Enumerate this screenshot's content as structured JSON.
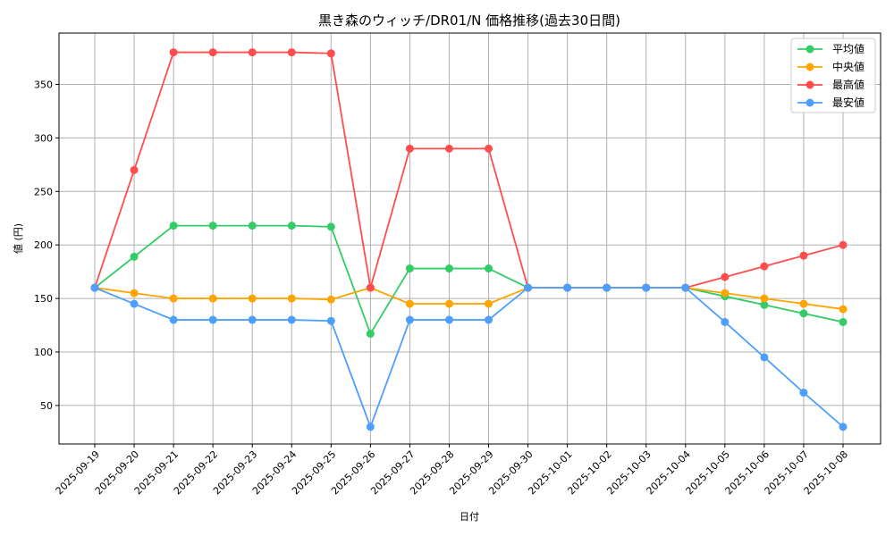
{
  "chart_data": {
    "type": "line",
    "title": "黒き森のウィッチ/DR01/N 価格推移(過去30日間)",
    "xlabel": "日付",
    "ylabel": "値 (円)",
    "ylim": [
      14,
      398
    ],
    "yticks": [
      50,
      100,
      150,
      200,
      250,
      300,
      350
    ],
    "grid": true,
    "legend_position": "upper right",
    "x": [
      "2025-09-19",
      "2025-09-20",
      "2025-09-21",
      "2025-09-22",
      "2025-09-23",
      "2025-09-24",
      "2025-09-25",
      "2025-09-26",
      "2025-09-27",
      "2025-09-28",
      "2025-09-29",
      "2025-09-30",
      "2025-10-01",
      "2025-10-02",
      "2025-10-03",
      "2025-10-04",
      "2025-10-05",
      "2025-10-06",
      "2025-10-07",
      "2025-10-08"
    ],
    "series": [
      {
        "name": "平均値",
        "color": "#33cc66",
        "values": [
          160,
          189,
          218,
          218,
          218,
          218,
          217,
          117,
          178,
          178,
          178,
          160,
          160,
          160,
          160,
          160,
          152,
          144,
          136,
          128
        ]
      },
      {
        "name": "中央値",
        "color": "#ffa500",
        "values": [
          160,
          155,
          150,
          150,
          150,
          150,
          149,
          160,
          145,
          145,
          145,
          160,
          160,
          160,
          160,
          160,
          155,
          150,
          145,
          140
        ]
      },
      {
        "name": "最高値",
        "color": "#ff4d4d",
        "values": [
          160,
          270,
          380,
          380,
          380,
          380,
          379,
          160,
          290,
          290,
          290,
          160,
          160,
          160,
          160,
          160,
          170,
          180,
          190,
          200
        ]
      },
      {
        "name": "最安値",
        "color": "#4d9fff",
        "values": [
          160,
          145,
          130,
          130,
          130,
          130,
          129,
          30,
          130,
          130,
          130,
          160,
          160,
          160,
          160,
          160,
          128,
          95,
          62,
          30
        ]
      }
    ]
  }
}
